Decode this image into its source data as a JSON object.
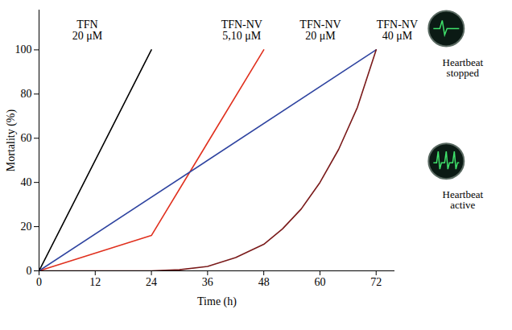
{
  "chart_data": {
    "type": "line",
    "xlabel": "Time (h)",
    "ylabel": "Mortality (%)",
    "xlim": [
      0,
      76
    ],
    "ylim": [
      0,
      118
    ],
    "xticks": [
      0,
      12,
      24,
      36,
      48,
      60,
      72
    ],
    "yticks": [
      0,
      20,
      40,
      60,
      80,
      100
    ],
    "grid": false,
    "series": [
      {
        "name": "TFN 20 μM",
        "color": "#000000",
        "x": [
          0,
          24
        ],
        "values": [
          0,
          100
        ],
        "label_x": 10.3,
        "label_y": 109
      },
      {
        "name": "TFN-NV 5,10 μM",
        "color": "#e0301e",
        "x": [
          0,
          24,
          48
        ],
        "values": [
          0,
          16,
          100
        ],
        "label_x": 43.3,
        "label_y": 109
      },
      {
        "name": "TFN-NV 20 μM",
        "color": "#2f44a0",
        "x": [
          0,
          72
        ],
        "values": [
          0,
          100
        ],
        "label_x": 60.1,
        "label_y": 109
      },
      {
        "name": "TFN-NV 40 μM",
        "color": "#7a1a1a",
        "x": [
          0,
          12,
          24,
          30,
          36,
          42,
          48,
          52,
          56,
          60,
          64,
          68,
          72
        ],
        "values": [
          0,
          0,
          0,
          0.5,
          2,
          6,
          12,
          19,
          28,
          40,
          55,
          74,
          100
        ],
        "label_x": 76.5,
        "label_y": 109
      }
    ],
    "annotations": [
      {
        "text": "Heartbeat stopped",
        "x": 90.5,
        "y": 92
      },
      {
        "text": "Heartbeat active",
        "x": 90.5,
        "y": 32
      }
    ]
  }
}
